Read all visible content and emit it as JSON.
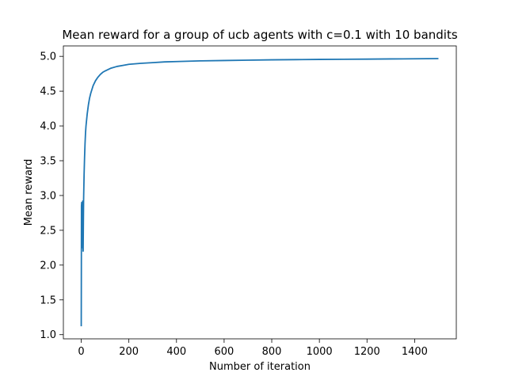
{
  "chart_data": {
    "type": "line",
    "title": "Mean reward for a group of ucb agents with c=0.1 with 10 bandits",
    "xlabel": "Number of iteration",
    "ylabel": "Mean reward",
    "xlim": [
      -75,
      1575
    ],
    "ylim": [
      0.94,
      5.15
    ],
    "xticks": [
      0,
      200,
      400,
      600,
      800,
      1000,
      1200,
      1400
    ],
    "yticks": [
      1.0,
      1.5,
      2.0,
      2.5,
      3.0,
      3.5,
      4.0,
      4.5,
      5.0
    ],
    "xtick_labels": [
      "0",
      "200",
      "400",
      "600",
      "800",
      "1000",
      "1200",
      "1400"
    ],
    "ytick_labels": [
      "1.0",
      "1.5",
      "2.0",
      "2.5",
      "3.0",
      "3.5",
      "4.0",
      "4.5",
      "5.0"
    ],
    "grid": false,
    "line_color": "#1f77b4",
    "series": [
      {
        "x": [
          0,
          1,
          2,
          3,
          4,
          5,
          6,
          7,
          8,
          9,
          10,
          12,
          14,
          16,
          18,
          20,
          25,
          30,
          35,
          40,
          50,
          60,
          70,
          80,
          90,
          100,
          125,
          150,
          175,
          200,
          250,
          300,
          350,
          400,
          500,
          600,
          700,
          800,
          900,
          1000,
          1100,
          1200,
          1300,
          1400,
          1500
        ],
        "y": [
          1.12,
          2.85,
          2.9,
          2.6,
          2.25,
          2.3,
          2.92,
          2.4,
          2.2,
          2.6,
          2.95,
          3.3,
          3.55,
          3.75,
          3.9,
          4.0,
          4.17,
          4.3,
          4.4,
          4.47,
          4.58,
          4.65,
          4.7,
          4.74,
          4.77,
          4.79,
          4.83,
          4.855,
          4.87,
          4.885,
          4.9,
          4.91,
          4.92,
          4.925,
          4.935,
          4.94,
          4.945,
          4.95,
          4.953,
          4.956,
          4.958,
          4.96,
          4.963,
          4.965,
          4.968
        ]
      }
    ]
  }
}
